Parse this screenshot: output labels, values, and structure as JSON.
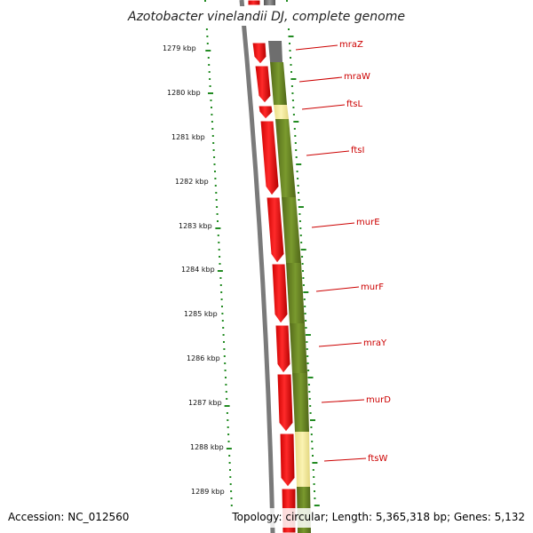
{
  "title": "Azotobacter vinelandii DJ, complete genome",
  "accession": "Accession: NC_012560",
  "topology": "Topology: circular; Length: 5,365,318 bp; Genes: 5,132",
  "colors": {
    "reverse_cds": "#ff0000",
    "forward_cds": "#6b8e23",
    "forward_pale": "#f3e99f",
    "backbone": "#808080",
    "tick_green": "#228b22",
    "gene_label": "#cc0000"
  },
  "kbp_labels": [
    "1279 kbp",
    "1280 kbp",
    "1281 kbp",
    "1282 kbp",
    "1283 kbp",
    "1284 kbp",
    "1285 kbp",
    "1286 kbp",
    "1287 kbp",
    "1288 kbp",
    "1289 kbp"
  ],
  "genes": [
    {
      "name": "mraZ"
    },
    {
      "name": "mraW"
    },
    {
      "name": "ftsL"
    },
    {
      "name": "ftsI"
    },
    {
      "name": "murE"
    },
    {
      "name": "murF"
    },
    {
      "name": "mraY"
    },
    {
      "name": "murD"
    },
    {
      "name": "ftsW"
    }
  ]
}
